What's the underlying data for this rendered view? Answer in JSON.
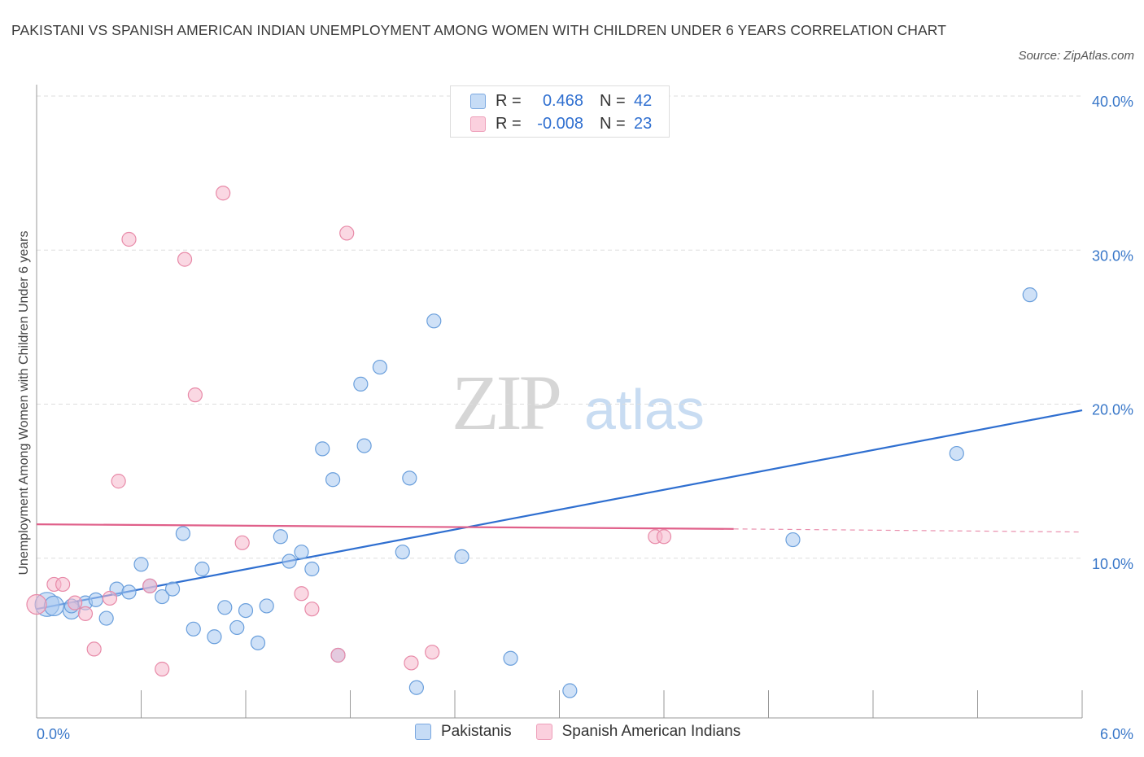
{
  "title": "PAKISTANI VS SPANISH AMERICAN INDIAN UNEMPLOYMENT AMONG WOMEN WITH CHILDREN UNDER 6 YEARS CORRELATION CHART",
  "source": "Source: ZipAtlas.com",
  "watermark": {
    "zip": "ZIP",
    "atlas": "atlas"
  },
  "legend_top": [
    {
      "key": "R =",
      "r": "0.468",
      "n_key": "N =",
      "n": "42",
      "color": "#a8c8f0"
    },
    {
      "key": "R =",
      "r": "-0.008",
      "n_key": "N =",
      "n": "23",
      "color": "#f5b8cc"
    }
  ],
  "legend_bottom": [
    {
      "label": "Pakistanis",
      "color": "#a8c8f0"
    },
    {
      "label": "Spanish American Indians",
      "color": "#f5b8cc"
    }
  ],
  "chart_data": {
    "type": "scatter",
    "title": "PAKISTANI VS SPANISH AMERICAN INDIAN UNEMPLOYMENT AMONG WOMEN WITH CHILDREN UNDER 6 YEARS CORRELATION CHART",
    "xlabel": "",
    "ylabel": "Unemployment Among Women with Children Under 6 years",
    "xlim": [
      0,
      6
    ],
    "ylim": [
      0,
      40
    ],
    "x_tick_labels": [
      "0.0%",
      "6.0%"
    ],
    "y_ticks": [
      10,
      20,
      30,
      40
    ],
    "y_tick_labels": [
      "10.0%",
      "20.0%",
      "30.0%",
      "40.0%"
    ],
    "grid": true,
    "legend_position": "top-center and bottom",
    "series": [
      {
        "name": "Pakistanis",
        "color": "#a8c8f0",
        "stroke": "#6a9fdc",
        "line_color": "#2f6fd0",
        "R": 0.468,
        "N": 42,
        "trend": {
          "x": [
            0.0,
            6.0
          ],
          "y": [
            6.7,
            19.6
          ]
        },
        "points": [
          [
            0.06,
            7.0,
            3
          ],
          [
            0.1,
            6.9,
            2
          ],
          [
            0.2,
            6.6,
            1.5
          ],
          [
            0.28,
            7.1,
            1
          ],
          [
            0.34,
            7.3,
            1
          ],
          [
            0.4,
            6.1,
            1
          ],
          [
            0.46,
            8.0,
            1
          ],
          [
            0.53,
            7.8,
            1
          ],
          [
            0.6,
            9.6,
            1
          ],
          [
            0.65,
            8.2,
            1
          ],
          [
            0.72,
            7.5,
            1
          ],
          [
            0.78,
            8.0,
            1
          ],
          [
            0.84,
            11.6,
            1
          ],
          [
            0.9,
            5.4,
            1
          ],
          [
            0.95,
            9.3,
            1
          ],
          [
            1.02,
            4.9,
            1
          ],
          [
            1.08,
            6.8,
            1
          ],
          [
            1.15,
            5.5,
            1
          ],
          [
            1.2,
            6.6,
            1
          ],
          [
            1.27,
            4.5,
            1
          ],
          [
            1.32,
            6.9,
            1
          ],
          [
            1.4,
            11.4,
            1
          ],
          [
            1.45,
            9.8,
            1
          ],
          [
            1.52,
            10.4,
            1
          ],
          [
            1.58,
            9.3,
            1
          ],
          [
            1.64,
            17.1,
            1
          ],
          [
            1.7,
            15.1,
            1
          ],
          [
            1.73,
            3.7,
            1
          ],
          [
            1.86,
            21.3,
            1
          ],
          [
            1.88,
            17.3,
            1
          ],
          [
            1.97,
            22.4,
            1
          ],
          [
            2.1,
            10.4,
            1
          ],
          [
            2.14,
            15.2,
            1
          ],
          [
            2.18,
            1.6,
            1
          ],
          [
            2.28,
            25.4,
            1
          ],
          [
            2.44,
            10.1,
            1
          ],
          [
            2.72,
            3.5,
            1
          ],
          [
            3.06,
            1.4,
            1
          ],
          [
            4.34,
            11.2,
            1
          ],
          [
            5.28,
            16.8,
            1
          ],
          [
            5.7,
            27.1,
            1
          ],
          [
            0.2,
            6.9,
            1
          ]
        ]
      },
      {
        "name": "Spanish American Indians",
        "color": "#f5b8cc",
        "stroke": "#e88aa8",
        "line_color": "#e0608a",
        "R": -0.008,
        "N": 23,
        "trend": {
          "x": [
            0.0,
            4.0
          ],
          "y": [
            12.2,
            11.9
          ]
        },
        "trend_dashed": {
          "x": [
            4.0,
            6.0
          ],
          "y": [
            11.9,
            11.7
          ]
        },
        "points": [
          [
            0.0,
            7.0,
            2
          ],
          [
            0.1,
            8.3,
            1
          ],
          [
            0.15,
            8.3,
            1
          ],
          [
            0.22,
            7.1,
            1
          ],
          [
            0.28,
            6.4,
            1
          ],
          [
            0.33,
            4.1,
            1
          ],
          [
            0.42,
            7.4,
            1
          ],
          [
            0.47,
            15.0,
            1
          ],
          [
            0.53,
            30.7,
            1
          ],
          [
            0.65,
            8.2,
            1
          ],
          [
            0.72,
            2.8,
            1
          ],
          [
            0.85,
            29.4,
            1
          ],
          [
            0.91,
            20.6,
            1
          ],
          [
            1.07,
            33.7,
            1
          ],
          [
            1.18,
            11.0,
            1
          ],
          [
            1.52,
            7.7,
            1
          ],
          [
            1.58,
            6.7,
            1
          ],
          [
            1.73,
            3.7,
            1
          ],
          [
            1.78,
            31.1,
            1
          ],
          [
            2.15,
            3.2,
            1
          ],
          [
            2.27,
            3.9,
            1
          ],
          [
            3.55,
            11.4,
            1
          ],
          [
            3.6,
            11.4,
            1
          ]
        ]
      }
    ]
  }
}
